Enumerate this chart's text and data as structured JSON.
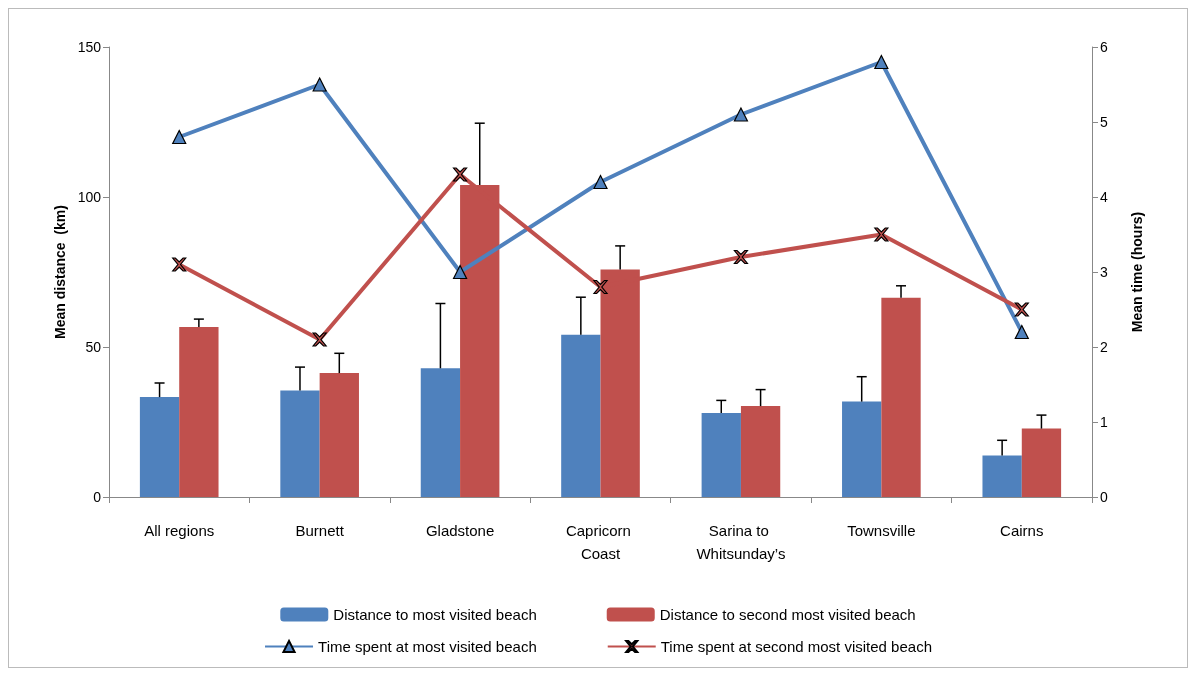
{
  "chart_data": {
    "type": "bar",
    "ylabel": "Mean distance  (km)",
    "y2label": "Mean time (hours)",
    "categories": [
      "All regions",
      "Burnett",
      "Gladstone",
      "Capricorn Coast",
      "Sarina to Whitsunday’s",
      "Townsville",
      "Cairns"
    ],
    "series": [
      {
        "name": "Distance to most visited beach",
        "color": "#4f81bd",
        "values": [
          33.3,
          35.5,
          42.9,
          54.1,
          28,
          31.8,
          13.8
        ],
        "errors": [
          [
            33.3,
            38
          ],
          [
            35.5,
            43.3
          ],
          [
            42.9,
            64.5
          ],
          [
            54.1,
            66.6
          ],
          [
            28,
            32.2
          ],
          [
            31.8,
            40.1
          ],
          [
            13.8,
            18.9
          ]
        ]
      },
      {
        "name": "Distance to second most visited beach",
        "color": "#c0504d",
        "values": [
          56.7,
          41.3,
          104,
          75.8,
          30.3,
          66.4,
          22.8
        ],
        "errors": [
          [
            56.7,
            59.3
          ],
          [
            41.3,
            47.9
          ],
          [
            104,
            124.6
          ],
          [
            75.8,
            83.7
          ],
          [
            30.3,
            35.8
          ],
          [
            66.4,
            70.4
          ],
          [
            22.8,
            27.3
          ]
        ]
      },
      {
        "name": "Time spent at most visited beach",
        "type": "line",
        "axis": "y2",
        "marker": "triangle",
        "color": "#4f81bd",
        "values": [
          4.8,
          5.5,
          3.0,
          4.2,
          5.1,
          5.8,
          2.2
        ]
      },
      {
        "name": "Time spent at second most visited beach",
        "type": "line",
        "axis": "y2",
        "marker": "cross",
        "color": "#c0504d",
        "values": [
          3.1,
          2.1,
          4.3,
          2.8,
          3.2,
          3.5,
          2.5
        ]
      }
    ],
    "ylim": [
      0,
      150
    ],
    "yticks": [
      0,
      50,
      100,
      150
    ],
    "y2lim": [
      0,
      6
    ],
    "y2ticks": [
      0,
      1,
      2,
      3,
      4,
      5,
      6
    ],
    "grid": false,
    "legend": "bottom"
  }
}
